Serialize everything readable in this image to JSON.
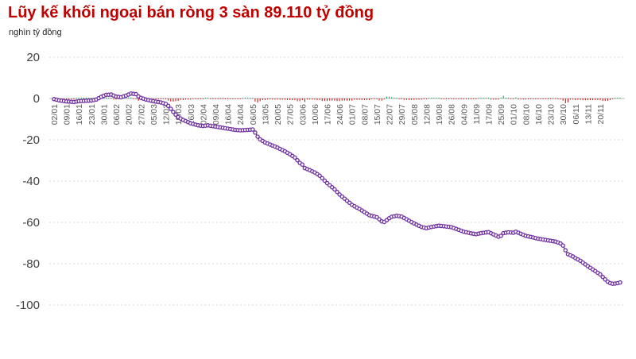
{
  "header": {
    "title": "Lũy kế khối ngoại bán ròng 3 sàn 89.110 tỷ đồng",
    "subtitle": "nghìn tỷ đồng"
  },
  "chart_data": {
    "type": "line",
    "title": "Lũy kế khối ngoại bán ròng 3 sàn 89.110 tỷ đồng",
    "unit_label": "nghìn tỷ đồng",
    "final_value": -89.11,
    "ylim": [
      -100,
      20
    ],
    "y_ticks": [
      20,
      0,
      -20,
      -40,
      -60,
      -80,
      -100
    ],
    "grid": {
      "dashed": true,
      "zero_line_solid": true,
      "legend": "none"
    },
    "x_labels": [
      "02/01",
      "09/01",
      "16/01",
      "23/01",
      "30/01",
      "06/02",
      "20/02",
      "27/02",
      "05/03",
      "12/03",
      "19/03",
      "26/03",
      "02/04",
      "09/04",
      "16/04",
      "24/04",
      "06/05",
      "13/05",
      "20/05",
      "27/05",
      "03/06",
      "10/06",
      "17/06",
      "24/06",
      "01/07",
      "08/07",
      "15/07",
      "22/07",
      "29/07",
      "05/08",
      "12/08",
      "19/08",
      "26/08",
      "04/09",
      "11/09",
      "17/09",
      "25/09",
      "01/10",
      "08/10",
      "16/10",
      "23/10",
      "30/10",
      "06/11",
      "13/11",
      "20/11"
    ],
    "points_per_label": 5,
    "n_points": 229,
    "series": [
      {
        "name": "cumulative-net-foreign-sell",
        "render": "line-with-markers",
        "line_color": "#1a1a1a",
        "marker_ring_color": "#7030a0",
        "marker_fill_color": "#ffffff",
        "anchors": [
          [
            0,
            -0.3
          ],
          [
            2,
            -0.9
          ],
          [
            5,
            -1.4
          ],
          [
            8,
            -1.7
          ],
          [
            10,
            -1.3
          ],
          [
            13,
            -1.1
          ],
          [
            15,
            -1.0
          ],
          [
            17,
            -0.5
          ],
          [
            19,
            0.8
          ],
          [
            21,
            1.8
          ],
          [
            23,
            1.9
          ],
          [
            25,
            0.9
          ],
          [
            27,
            0.6
          ],
          [
            29,
            1.4
          ],
          [
            31,
            2.4
          ],
          [
            33,
            2.1
          ],
          [
            34,
            1.0
          ],
          [
            35,
            0.3
          ],
          [
            37,
            -0.5
          ],
          [
            40,
            -1.3
          ],
          [
            43,
            -1.9
          ],
          [
            45,
            -2.6
          ],
          [
            46,
            -3.6
          ],
          [
            47,
            -5.0
          ],
          [
            48,
            -6.5
          ],
          [
            49,
            -7.8
          ],
          [
            50,
            -9.0
          ],
          [
            52,
            -10.4
          ],
          [
            55,
            -12.0
          ],
          [
            58,
            -13.0
          ],
          [
            60,
            -13.3
          ],
          [
            62,
            -13.0
          ],
          [
            65,
            -13.6
          ],
          [
            68,
            -14.2
          ],
          [
            70,
            -14.6
          ],
          [
            73,
            -15.2
          ],
          [
            75,
            -15.4
          ],
          [
            78,
            -15.2
          ],
          [
            80,
            -15.0
          ],
          [
            81,
            -16.5
          ],
          [
            82,
            -18.5
          ],
          [
            83,
            -19.8
          ],
          [
            85,
            -21.3
          ],
          [
            88,
            -22.8
          ],
          [
            90,
            -23.8
          ],
          [
            93,
            -25.6
          ],
          [
            95,
            -27.0
          ],
          [
            97,
            -28.6
          ],
          [
            99,
            -31.2
          ],
          [
            100,
            -32.0
          ],
          [
            101,
            -33.7
          ],
          [
            102,
            -34.2
          ],
          [
            105,
            -35.8
          ],
          [
            107,
            -37.4
          ],
          [
            110,
            -41.0
          ],
          [
            113,
            -44.0
          ],
          [
            115,
            -46.5
          ],
          [
            118,
            -49.5
          ],
          [
            120,
            -51.5
          ],
          [
            123,
            -53.5
          ],
          [
            125,
            -55.0
          ],
          [
            127,
            -56.5
          ],
          [
            130,
            -57.5
          ],
          [
            132,
            -59.5
          ],
          [
            133,
            -59.8
          ],
          [
            135,
            -58.0
          ],
          [
            136,
            -57.3
          ],
          [
            138,
            -56.8
          ],
          [
            140,
            -57.2
          ],
          [
            142,
            -58.5
          ],
          [
            145,
            -60.5
          ],
          [
            148,
            -62.2
          ],
          [
            150,
            -62.8
          ],
          [
            152,
            -62.2
          ],
          [
            155,
            -61.6
          ],
          [
            158,
            -62.0
          ],
          [
            160,
            -62.3
          ],
          [
            163,
            -63.6
          ],
          [
            165,
            -64.5
          ],
          [
            168,
            -65.3
          ],
          [
            170,
            -65.7
          ],
          [
            172,
            -65.2
          ],
          [
            175,
            -64.7
          ],
          [
            177,
            -65.8
          ],
          [
            179,
            -66.9
          ],
          [
            180,
            -66.5
          ],
          [
            181,
            -65.2
          ],
          [
            183,
            -64.8
          ],
          [
            185,
            -65.0
          ],
          [
            186,
            -64.5
          ],
          [
            188,
            -65.5
          ],
          [
            190,
            -66.5
          ],
          [
            193,
            -67.3
          ],
          [
            195,
            -67.9
          ],
          [
            198,
            -68.5
          ],
          [
            200,
            -68.9
          ],
          [
            202,
            -69.3
          ],
          [
            204,
            -70.2
          ],
          [
            205,
            -71.2
          ],
          [
            206,
            -73.5
          ],
          [
            207,
            -75.4
          ],
          [
            209,
            -76.5
          ],
          [
            210,
            -77.3
          ],
          [
            212,
            -78.6
          ],
          [
            215,
            -81.2
          ],
          [
            217,
            -82.8
          ],
          [
            220,
            -85.2
          ],
          [
            221,
            -86.4
          ],
          [
            222,
            -87.6
          ],
          [
            223,
            -88.7
          ],
          [
            224,
            -89.4
          ],
          [
            225,
            -89.7
          ],
          [
            226,
            -89.6
          ],
          [
            227,
            -89.4
          ],
          [
            228,
            -89.1
          ]
        ]
      },
      {
        "name": "daily-net-value-bars",
        "render": "bars",
        "derived_from": "diff-of-cumulative",
        "positive_color": "#00a050",
        "negative_color": "#cc0000"
      }
    ],
    "colors": {
      "title": "#c00000",
      "gridline": "#d9d9d9",
      "zero_line": "#bdbdbd",
      "y_tick_text": "#404040",
      "x_tick_text": "#595959"
    }
  }
}
